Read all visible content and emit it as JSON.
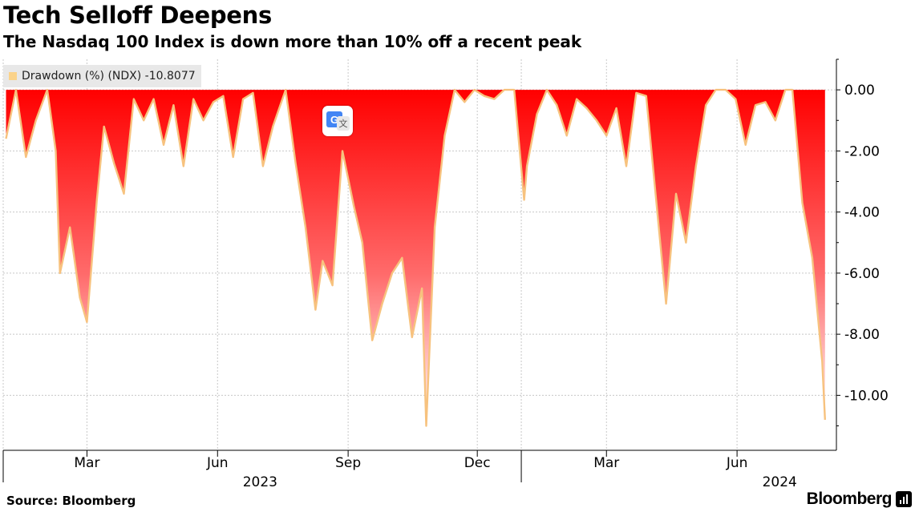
{
  "header": {
    "title": "Tech Selloff Deepens",
    "subtitle": "The Nasdaq 100 Index is down more than 10% off a recent peak"
  },
  "legend": {
    "label": "Drawdown (%) (NDX) -10.8077",
    "color": "#fbd38a"
  },
  "footer": {
    "source": "Source: Bloomberg",
    "brand": "Bloomberg"
  },
  "overlay": {
    "icon": "google-translate-icon"
  },
  "colors": {
    "line": "#f7c27e",
    "fill_top": "#ff0000",
    "fill_bottom": "#ffffff",
    "grid": "#c8c8c8"
  },
  "chart_data": {
    "type": "area",
    "title": "Tech Selloff Deepens",
    "subtitle": "The Nasdaq 100 Index is down more than 10% off a recent peak",
    "series": [
      {
        "name": "Drawdown (%) (NDX)",
        "last_value": -10.8077,
        "x": [
          "2023-01-03",
          "2023-01-10",
          "2023-01-17",
          "2023-01-24",
          "2023-02-01",
          "2023-02-02",
          "2023-02-07",
          "2023-02-10",
          "2023-02-17",
          "2023-02-24",
          "2023-03-01",
          "2023-03-08",
          "2023-03-13",
          "2023-03-20",
          "2023-03-27",
          "2023-04-03",
          "2023-04-10",
          "2023-04-17",
          "2023-04-24",
          "2023-05-01",
          "2023-05-08",
          "2023-05-15",
          "2023-05-22",
          "2023-05-29",
          "2023-06-05",
          "2023-06-12",
          "2023-06-19",
          "2023-06-26",
          "2023-07-03",
          "2023-07-10",
          "2023-07-19",
          "2023-07-26",
          "2023-08-02",
          "2023-08-09",
          "2023-08-14",
          "2023-08-21",
          "2023-08-28",
          "2023-09-05",
          "2023-09-11",
          "2023-09-18",
          "2023-09-25",
          "2023-10-02",
          "2023-10-09",
          "2023-10-16",
          "2023-10-23",
          "2023-10-26",
          "2023-11-01",
          "2023-11-08",
          "2023-11-15",
          "2023-11-22",
          "2023-11-29",
          "2023-12-06",
          "2023-12-13",
          "2023-12-20",
          "2023-12-27",
          "2024-01-03",
          "2024-01-05",
          "2024-01-12",
          "2024-01-19",
          "2024-01-26",
          "2024-02-02",
          "2024-02-09",
          "2024-02-16",
          "2024-02-23",
          "2024-03-01",
          "2024-03-08",
          "2024-03-15",
          "2024-03-22",
          "2024-03-29",
          "2024-04-05",
          "2024-04-12",
          "2024-04-19",
          "2024-04-26",
          "2024-05-03",
          "2024-05-10",
          "2024-05-17",
          "2024-05-24",
          "2024-05-31",
          "2024-06-07",
          "2024-06-14",
          "2024-06-21",
          "2024-06-28",
          "2024-07-05",
          "2024-07-10",
          "2024-07-17",
          "2024-07-24",
          "2024-07-31",
          "2024-08-02"
        ],
        "values": [
          -1.6,
          0,
          -2.2,
          -1.0,
          0,
          -0.3,
          -2.0,
          -6.0,
          -4.5,
          -6.8,
          -7.6,
          -3.6,
          -1.2,
          -2.4,
          -3.4,
          -0.3,
          -1.0,
          -0.3,
          -1.8,
          -0.5,
          -2.5,
          -0.3,
          -1.0,
          -0.4,
          -0.2,
          -2.2,
          -0.3,
          -0.1,
          -2.5,
          -1.2,
          0,
          -2.4,
          -4.5,
          -7.2,
          -5.6,
          -6.4,
          -2.0,
          -3.8,
          -5.0,
          -8.2,
          -7.0,
          -6.0,
          -5.5,
          -8.1,
          -6.5,
          -11.0,
          -4.5,
          -1.5,
          0,
          -0.4,
          0,
          -0.2,
          -0.3,
          0,
          0,
          -3.6,
          -2.5,
          -0.8,
          0,
          -0.5,
          -1.5,
          -0.3,
          -0.6,
          -1.0,
          -1.5,
          -0.6,
          -2.5,
          -0.1,
          -0.2,
          -3.6,
          -7.0,
          -3.4,
          -5.0,
          -2.5,
          -0.5,
          0,
          0,
          -0.3,
          -1.8,
          -0.5,
          -0.4,
          -1.0,
          0,
          0,
          -3.7,
          -5.5,
          -8.9,
          -10.8
        ]
      }
    ],
    "xlabel": "",
    "ylabel": "",
    "ylim": [
      -11.8,
      1.0
    ],
    "yticks": [
      0,
      -2,
      -4,
      -6,
      -8,
      -10
    ],
    "ytick_labels": [
      "0.00",
      "-2.00",
      "-4.00",
      "-6.00",
      "-8.00",
      "-10.00"
    ],
    "x_range": [
      "2023-01-01",
      "2024-08-10"
    ],
    "month_ticks": [
      {
        "date": "2023-03-01",
        "label": "Mar"
      },
      {
        "date": "2023-06-01",
        "label": "Jun"
      },
      {
        "date": "2023-09-01",
        "label": "Sep"
      },
      {
        "date": "2023-12-01",
        "label": "Dec"
      },
      {
        "date": "2024-03-01",
        "label": "Mar"
      },
      {
        "date": "2024-06-01",
        "label": "Jun"
      }
    ],
    "year_ticks": [
      {
        "date": "2023-01-01",
        "label": ""
      },
      {
        "date": "2024-01-01",
        "label": ""
      }
    ],
    "year_labels": [
      {
        "date": "2023-07-01",
        "label": "2023"
      },
      {
        "date": "2024-07-01",
        "label": "2024"
      }
    ],
    "grid": true,
    "legend_position": "top-left"
  }
}
